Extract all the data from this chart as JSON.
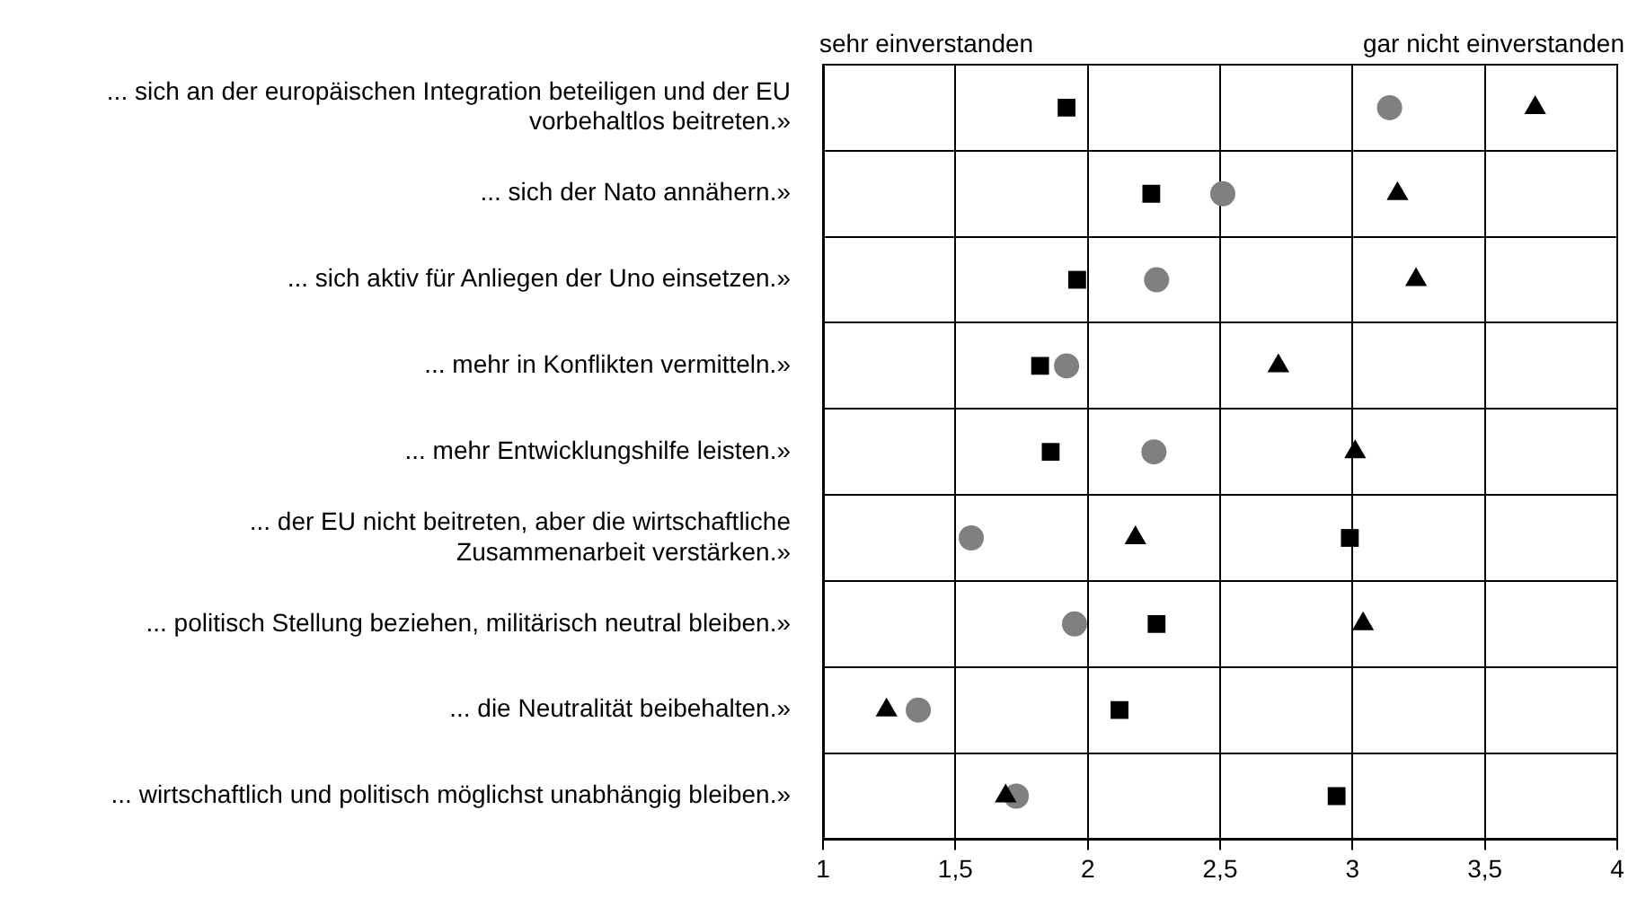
{
  "chart_data": {
    "type": "scatter",
    "categories": [
      "... sich an der europäischen Integration beteiligen und der EU vorbehaltlos beitreten.»",
      "... sich der Nato annähern.»",
      "... sich aktiv für Anliegen der Uno einsetzen.»",
      "... mehr in Konflikten vermitteln.»",
      "... mehr Entwicklungshilfe leisten.»",
      "... der EU nicht beitreten, aber die wirtschaftliche Zusammenarbeit verstärken.»",
      "... politisch Stellung beziehen, militärisch neutral bleiben.»",
      "... die Neutralität beibehalten.»",
      "... wirtschaftlich und politisch möglichst unabhängig bleiben.»"
    ],
    "series": [
      {
        "color": "#000000",
        "marker": "square",
        "values": [
          1.92,
          2.24,
          1.96,
          1.82,
          1.86,
          2.99,
          2.26,
          2.12,
          2.94
        ]
      },
      {
        "color": "#808080",
        "marker": "circle",
        "values": [
          3.14,
          2.51,
          2.26,
          1.92,
          2.25,
          1.56,
          1.95,
          1.36,
          1.73
        ]
      },
      {
        "color": "#000000",
        "marker": "triangle",
        "values": [
          3.69,
          3.17,
          3.24,
          2.72,
          3.01,
          2.18,
          3.04,
          1.24,
          1.69
        ]
      }
    ],
    "xlim": [
      1,
      4
    ],
    "xticks": [
      {
        "value": 1,
        "label": "1"
      },
      {
        "value": 1.5,
        "label": "1,5"
      },
      {
        "value": 2,
        "label": "2"
      },
      {
        "value": 2.5,
        "label": "2,5"
      },
      {
        "value": 3,
        "label": "3"
      },
      {
        "value": 3.5,
        "label": "3,5"
      },
      {
        "value": 4,
        "label": "4"
      }
    ],
    "orientation": "horizontal",
    "grid": true,
    "legend": false,
    "annotations": [
      "sehr einverstanden",
      "gar nicht einverstanden"
    ]
  }
}
